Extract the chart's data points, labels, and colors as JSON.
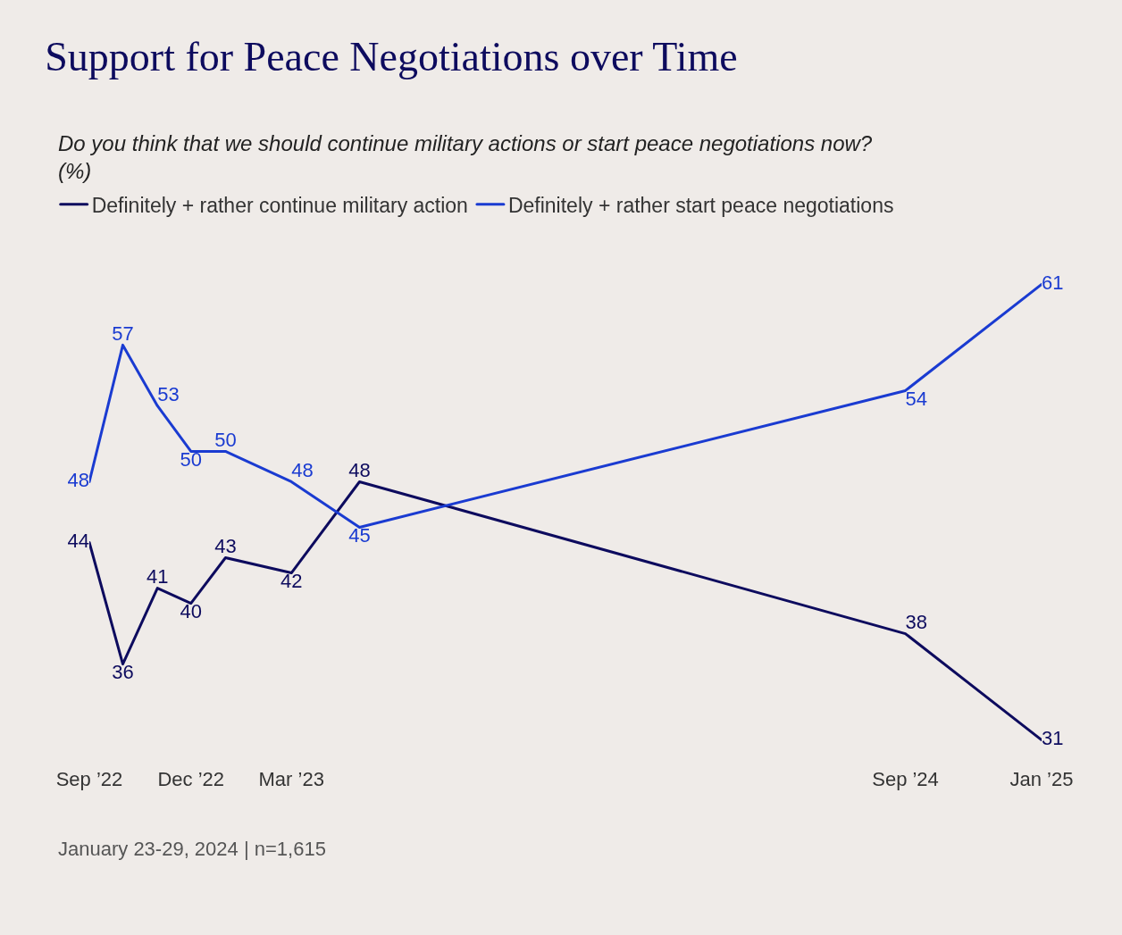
{
  "chart_data": {
    "type": "line",
    "title": "Support for Peace Negotiations over Time",
    "subtitle": "Do you think that we should continue military actions or start peace negotiations now? (%)",
    "x": [
      "2022-09",
      "2022-10",
      "2022-11",
      "2022-12",
      "2023-01",
      "2023-03",
      "2023-05",
      "2024-09",
      "2025-01"
    ],
    "series": [
      {
        "name": "Definitely + rather continue military action",
        "color": "#0d0b5e",
        "values": [
          44,
          36,
          41,
          40,
          43,
          42,
          48,
          38,
          31
        ]
      },
      {
        "name": "Definitely + rather start peace negotiations",
        "color": "#1a3bd1",
        "values": [
          48,
          57,
          53,
          50,
          50,
          48,
          45,
          54,
          61
        ]
      }
    ],
    "xticks": [
      {
        "value": "2022-09",
        "label": "Sep ’22"
      },
      {
        "value": "2022-12",
        "label": "Dec ’22"
      },
      {
        "value": "2023-03",
        "label": "Mar ’23"
      },
      {
        "value": "2024-09",
        "label": "Sep ’24"
      },
      {
        "value": "2025-01",
        "label": "Jan ’25"
      }
    ],
    "xlim": [
      "2022-09",
      "2025-01"
    ],
    "tick_labels": "x",
    "data_labels": true,
    "grid": false,
    "legend": "top left",
    "marker": "none",
    "line_style": "solid",
    "annotations": [
      "January 23-29, 2024 | n=1,615"
    ]
  }
}
